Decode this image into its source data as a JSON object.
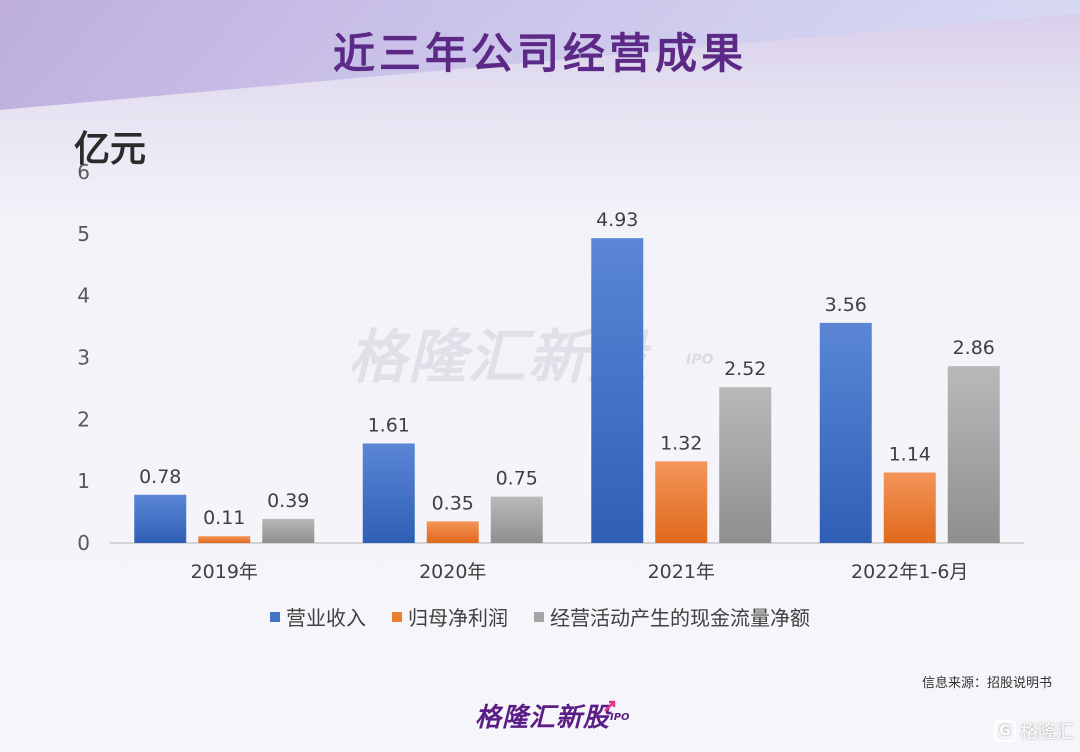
{
  "title": "近三年公司经营成果",
  "unit": "亿元",
  "watermark": {
    "text": "格隆汇新股",
    "suffix": "IPO"
  },
  "source": "信息来源：招股说明书",
  "logo": {
    "text": "格隆汇新股",
    "suffix": "IPO"
  },
  "corner_badge": {
    "icon": "G",
    "text": "格隆汇"
  },
  "colors": {
    "revenue": "#4472c4",
    "profit": "#ed7d31",
    "cashflow": "#a5a5a5",
    "title": "#5c2a86"
  },
  "chart_data": {
    "type": "bar",
    "categories": [
      "2019年",
      "2020年",
      "2021年",
      "2022年1-6月"
    ],
    "series": [
      {
        "name": "营业收入",
        "values": [
          0.78,
          1.61,
          4.93,
          3.56
        ]
      },
      {
        "name": "归母净利润",
        "values": [
          0.11,
          0.35,
          1.32,
          1.14
        ]
      },
      {
        "name": "经营活动产生的现金流量净额",
        "values": [
          0.39,
          0.75,
          2.52,
          2.86
        ]
      }
    ],
    "ylim": [
      0,
      6
    ],
    "yticks": [
      0,
      1,
      2,
      3,
      4,
      5,
      6
    ],
    "ylabel": "亿元",
    "grid": false,
    "legend_position": "bottom"
  }
}
